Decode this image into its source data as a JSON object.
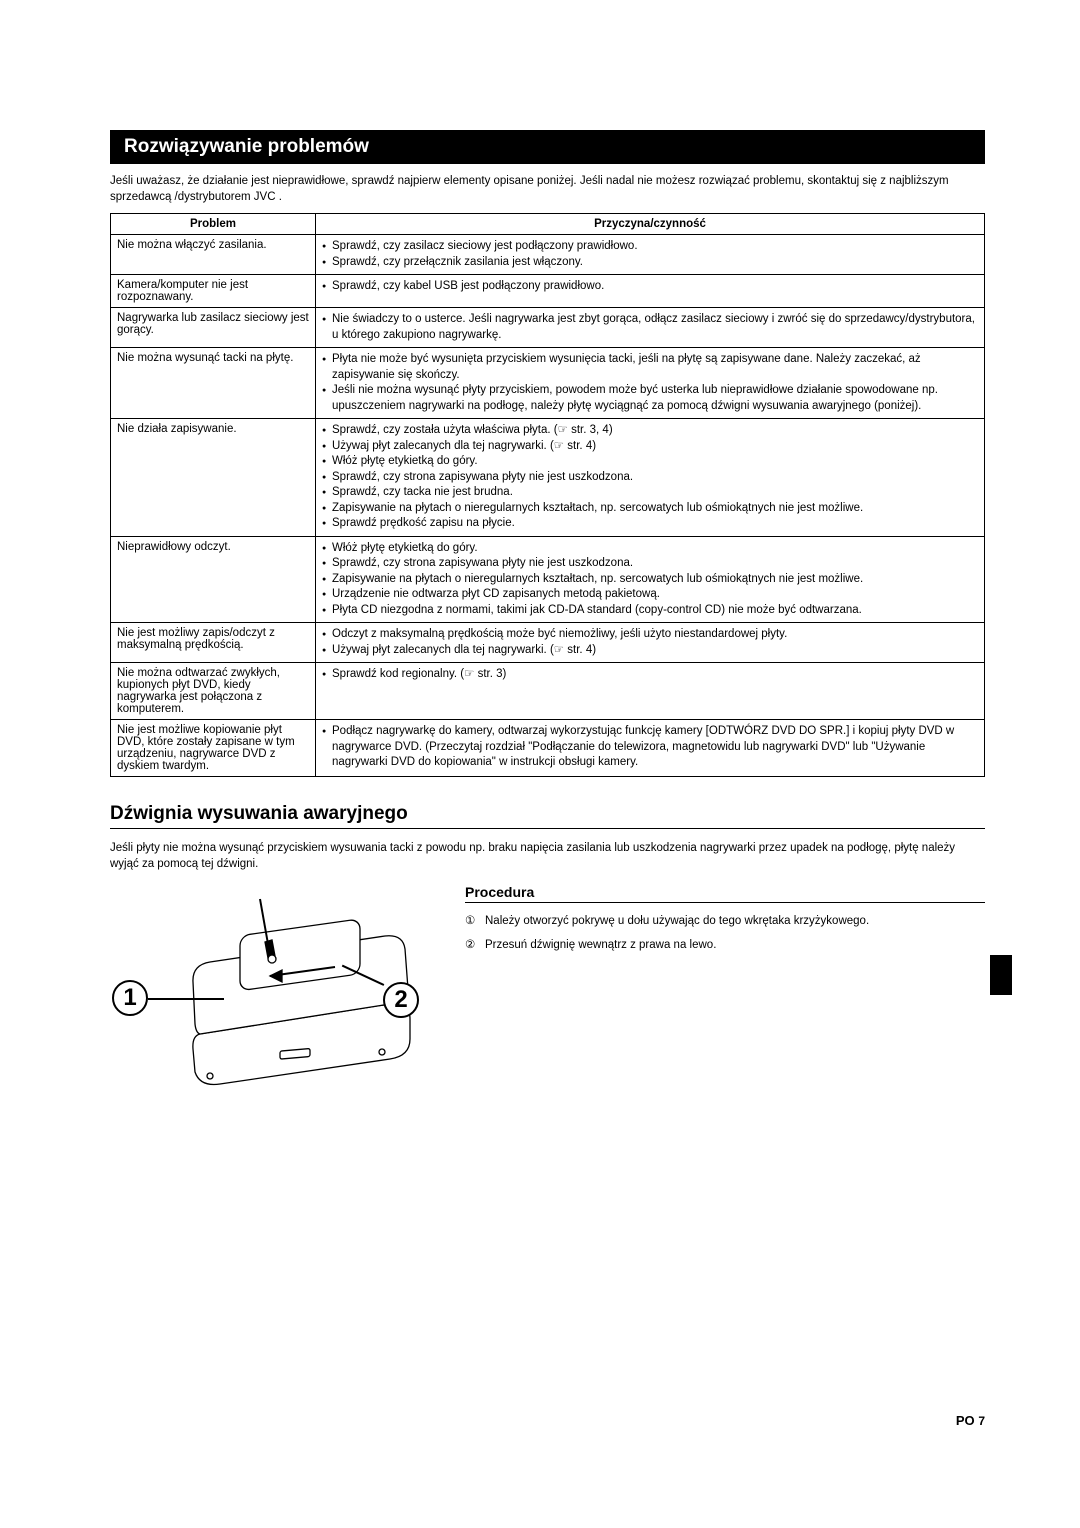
{
  "section1_title": "Rozwiązywanie problemów",
  "intro": "Jeśli uważasz, że działanie jest nieprawidłowe, sprawdź najpierw elementy opisane poniżej. Jeśli nadal nie możesz rozwiązać problemu, skontaktuj się z najbliższym sprzedawcą /dystrybutorem JVC .",
  "table": {
    "col1": "Problem",
    "col2": "Przyczyna/czynność",
    "rows": [
      {
        "problem": "Nie można włączyć zasilania.",
        "causes": [
          "Sprawdź, czy zasilacz sieciowy jest podłączony prawidłowo.",
          "Sprawdź, czy przełącznik zasilania jest włączony."
        ]
      },
      {
        "problem": "Kamera/komputer nie jest rozpoznawany.",
        "causes": [
          "Sprawdź, czy kabel USB jest podłączony prawidłowo."
        ]
      },
      {
        "problem": "Nagrywarka lub zasilacz sieciowy jest gorący.",
        "causes": [
          "Nie świadczy to o usterce. Jeśli nagrywarka jest zbyt gorąca, odłącz zasilacz sieciowy i zwróć się do sprzedawcy/dystrybutora, u którego zakupiono nagrywarkę."
        ]
      },
      {
        "problem": "Nie można wysunąć tacki na płytę.",
        "causes": [
          "Płyta nie może być wysunięta przyciskiem wysunięcia tacki, jeśli na płytę są zapisywane dane. Należy zaczekać, aż zapisywanie się skończy.",
          "Jeśli nie można wysunąć płyty przyciskiem, powodem może być usterka lub nieprawidłowe działanie spowodowane np. upuszczeniem nagrywarki na podłogę, należy płytę wyciągnąć za pomocą dźwigni wysuwania awaryjnego (poniżej)."
        ]
      },
      {
        "problem": "Nie działa zapisywanie.",
        "causes": [
          "Sprawdź, czy została użyta właściwa płyta. (☞ str. 3, 4)",
          "Używaj płyt zalecanych dla tej nagrywarki. (☞ str. 4)",
          "Włóż płytę etykietką do góry.",
          "Sprawdź, czy strona zapisywana płyty nie jest uszkodzona.",
          "Sprawdź, czy tacka nie jest brudna.",
          "Zapisywanie na płytach o nieregularnych kształtach, np. sercowatych lub ośmiokątnych nie jest możliwe.",
          "Sprawdź prędkość zapisu na płycie."
        ]
      },
      {
        "problem": "Nieprawidłowy odczyt.",
        "causes": [
          "Włóż płytę etykietką do góry.",
          "Sprawdź, czy strona zapisywana płyty nie jest uszkodzona.",
          "Zapisywanie na płytach o nieregularnych kształtach, np. sercowatych lub ośmiokątnych nie jest możliwe.",
          "Urządzenie nie odtwarza płyt CD zapisanych metodą pakietową.",
          "Płyta CD niezgodna z normami, takimi jak CD-DA standard (copy-control CD) nie może być odtwarzana."
        ]
      },
      {
        "problem": "Nie jest możliwy zapis/odczyt z maksymalną prędkością.",
        "causes": [
          "Odczyt z maksymalną prędkością może być niemożliwy, jeśli użyto niestandardowej płyty.",
          "Używaj płyt zalecanych dla tej nagrywarki. (☞ str. 4)"
        ]
      },
      {
        "problem": "Nie można odtwarzać zwykłych, kupionych płyt DVD, kiedy nagrywarka jest połączona z komputerem.",
        "causes": [
          "Sprawdź kod regionalny. (☞ str. 3)"
        ]
      },
      {
        "problem": "Nie jest możliwe kopiowanie płyt DVD, które zostały zapisane w tym urządzeniu, nagrywarce DVD z dyskiem twardym.",
        "causes": [
          "Podłącz nagrywarkę do kamery, odtwarzaj wykorzystując funkcję kamery [ODTWÓRZ DVD DO SPR.] i kopiuj płyty DVD w nagrywarce DVD.\n(Przeczytaj rozdział \"Podłączanie do telewizora, magnetowidu lub nagrywarki DVD\" lub \"Używanie nagrywarki DVD do kopiowania\" w instrukcji obsługi kamery."
        ]
      }
    ]
  },
  "section2_title": "Dźwignia wysuwania awaryjnego",
  "section2_intro": "Jeśli płyty nie można wysunąć przyciskiem wysuwania tacki z powodu np. braku napięcia zasilania lub uszkodzenia nagrywarki przez upadek na podłogę, płytę należy wyjąć za pomocą tej dźwigni.",
  "procedure_title": "Procedura",
  "steps": [
    {
      "num": "①",
      "text": "Należy otworzyć pokrywę u dołu używając do tego wkrętaka krzyżykowego."
    },
    {
      "num": "②",
      "text": "Przesuń dźwignię wewnątrz z prawa na lewo."
    }
  ],
  "illustration": {
    "callout1": "1",
    "callout2": "2"
  },
  "footer_lang": "PO",
  "footer_page": "7"
}
